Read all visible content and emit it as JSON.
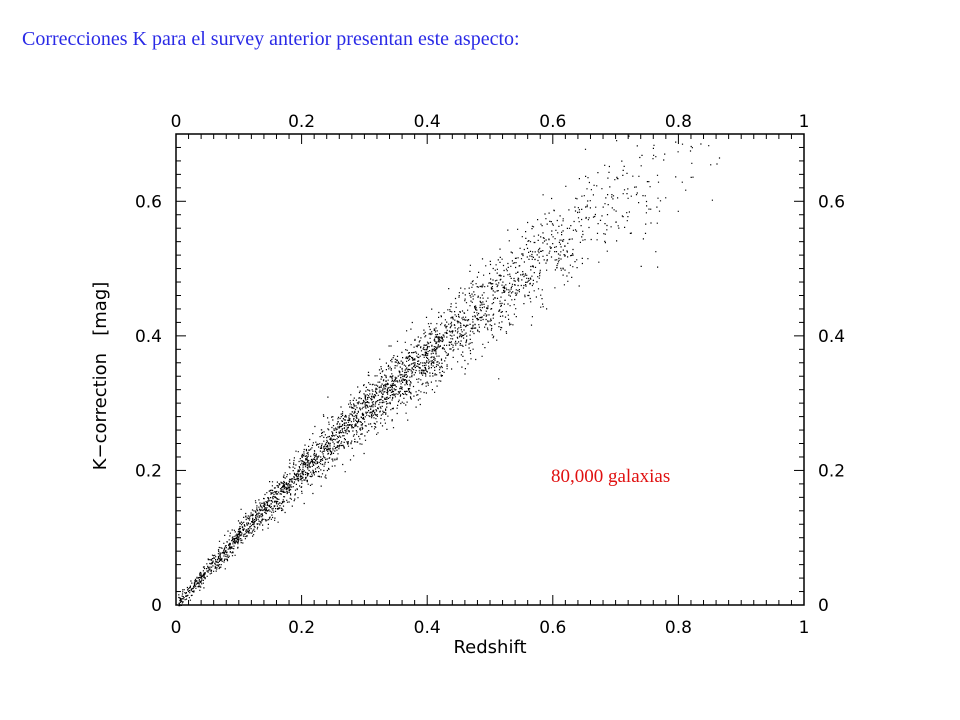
{
  "caption": "Correcciones K para el survey anterior presentan este aspecto:",
  "colors": {
    "caption": "#2a2ae6",
    "annotation": "#e01010",
    "points": "#000000"
  },
  "chart_data": {
    "type": "scatter",
    "title": "",
    "xlabel": "Redshift",
    "ylabel": "K−correction   [mag]",
    "xlim": [
      0,
      1
    ],
    "ylim": [
      0,
      0.7
    ],
    "xticks": [
      0,
      0.2,
      0.4,
      0.6,
      0.8,
      1
    ],
    "xtick_labels": [
      "0",
      "0.2",
      "0.4",
      "0.6",
      "0.8",
      "1"
    ],
    "yticks": [
      0,
      0.2,
      0.4,
      0.6
    ],
    "ytick_labels": [
      "0",
      "0.2",
      "0.4",
      "0.6"
    ],
    "mirrored_axes": true,
    "grid": false,
    "annotation": "80,000 galaxias",
    "series": [
      {
        "n_points": 80000,
        "trend": [
          {
            "x": 0.0,
            "y": 0.0
          },
          {
            "x": 0.1,
            "y": 0.105
          },
          {
            "x": 0.2,
            "y": 0.2
          },
          {
            "x": 0.3,
            "y": 0.29
          },
          {
            "x": 0.4,
            "y": 0.37
          },
          {
            "x": 0.5,
            "y": 0.45
          },
          {
            "x": 0.6,
            "y": 0.53
          },
          {
            "x": 0.7,
            "y": 0.6
          },
          {
            "x": 0.8,
            "y": 0.65
          },
          {
            "x": 0.9,
            "y": 0.69
          }
        ]
      }
    ]
  }
}
